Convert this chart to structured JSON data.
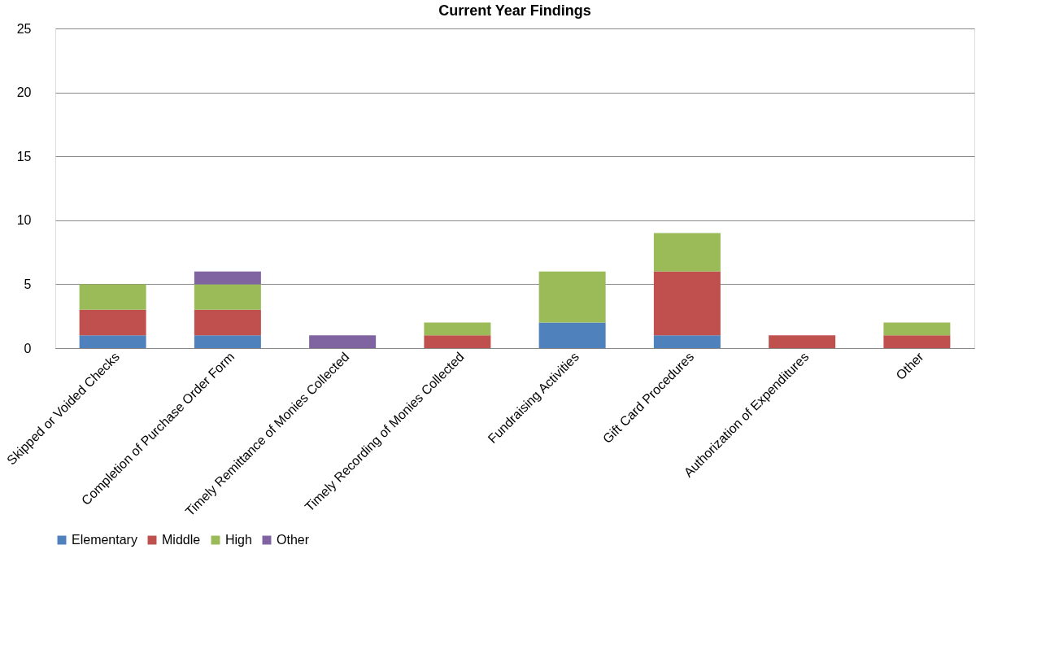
{
  "chart_data": {
    "type": "bar",
    "title": "Current Year Findings",
    "stacked": true,
    "categories": [
      "Skipped or Voided Checks",
      "Completion of Purchase Order Form",
      "Timely Remittance of Monies Collected",
      "Timely Recording of Monies Collected",
      "Fundraising Activities",
      "Gift Card Procedures",
      "Authorization of Expenditures",
      "Other"
    ],
    "series": [
      {
        "name": "Elementary",
        "color": "#4f81bd",
        "values": [
          1,
          1,
          null,
          null,
          2,
          1,
          null,
          null
        ]
      },
      {
        "name": "Middle",
        "color": "#c0504d",
        "values": [
          2,
          2,
          null,
          1,
          null,
          5,
          1,
          1
        ]
      },
      {
        "name": "High",
        "color": "#9bbb59",
        "values": [
          2,
          2,
          null,
          1,
          4,
          3,
          null,
          1
        ]
      },
      {
        "name": "Other",
        "color": "#8064a2",
        "values": [
          null,
          1,
          1,
          null,
          null,
          null,
          null,
          null
        ]
      }
    ],
    "ylim": [
      0,
      25
    ],
    "yticks": [
      0,
      5,
      10,
      15,
      20,
      25
    ],
    "grid": "y",
    "legend": "bottom"
  }
}
